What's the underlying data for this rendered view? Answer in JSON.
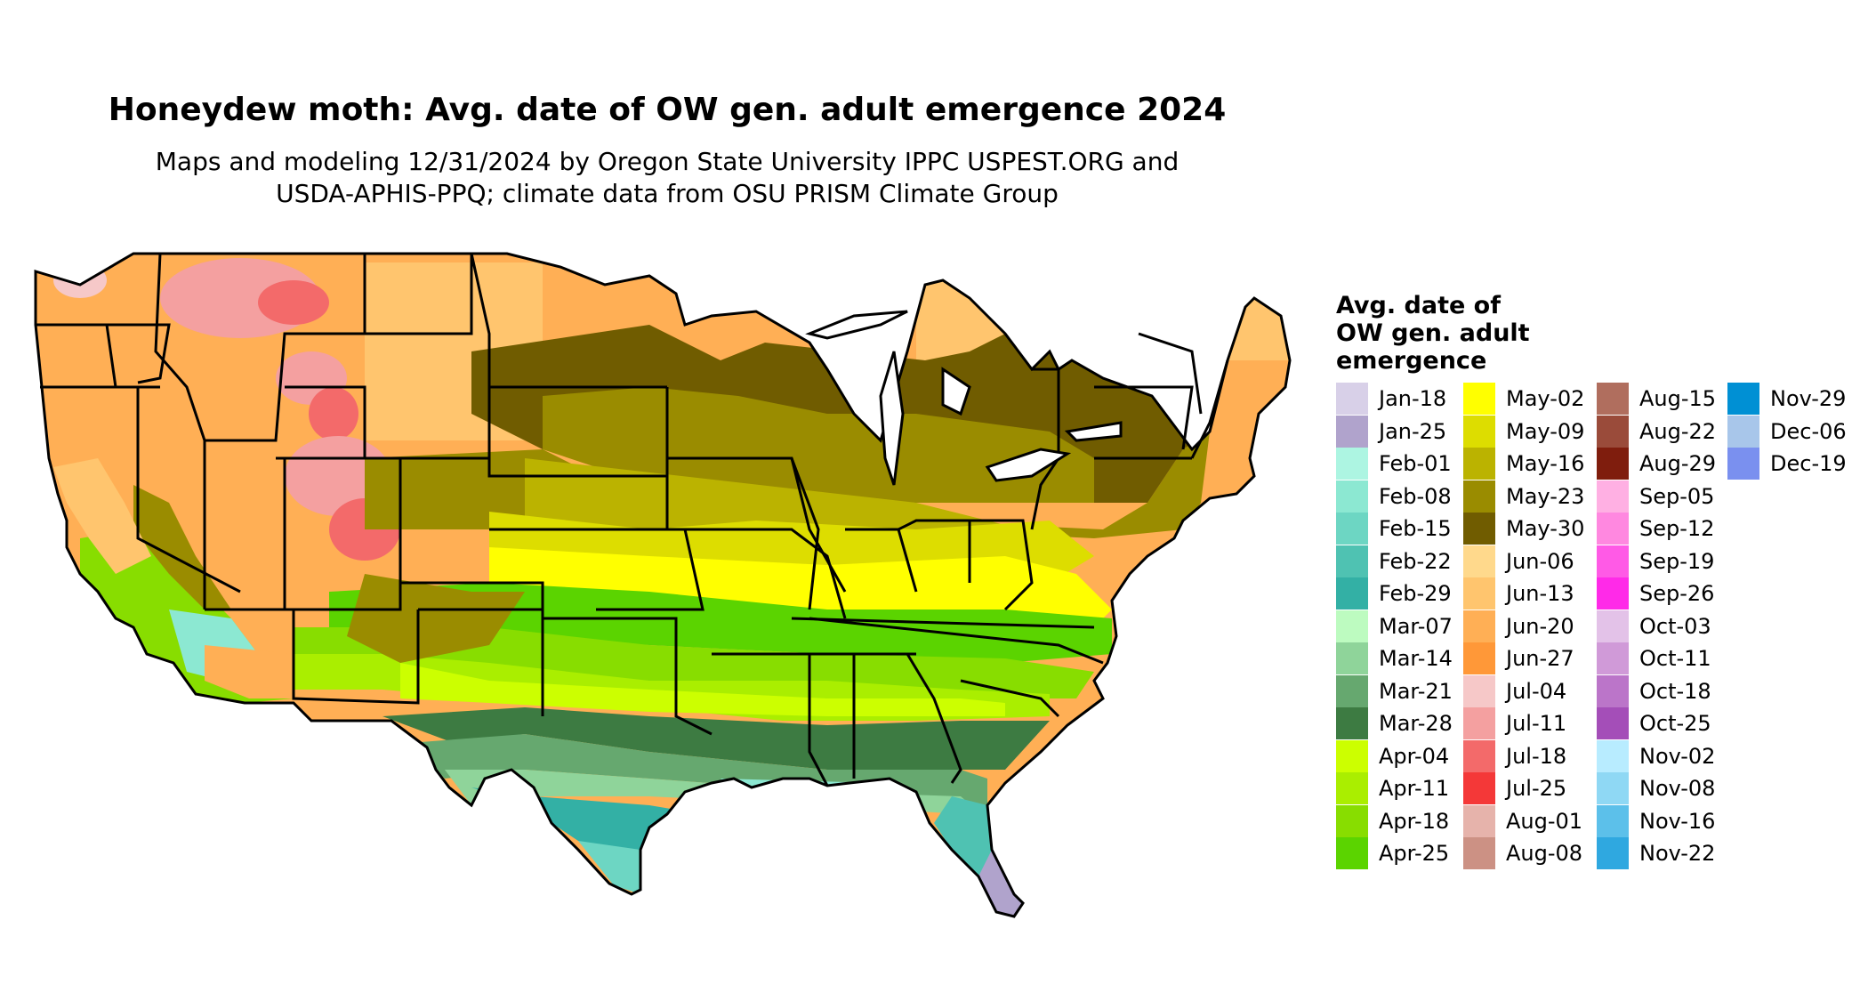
{
  "title": "Honeydew moth: Avg. date of OW gen. adult emergence 2024",
  "subtitle_line1": "Maps and modeling 12/31/2024 by Oregon State University IPPC USPEST.ORG and",
  "subtitle_line2": "USDA-APHIS-PPQ; climate data from OSU PRISM Climate Group",
  "legend": {
    "title_lines": [
      "Avg. date of",
      "OW gen. adult",
      "emergence"
    ],
    "items": [
      {
        "label": "Jan-18",
        "color": "#d8d0e8"
      },
      {
        "label": "Jan-25",
        "color": "#b0a3cc"
      },
      {
        "label": "Feb-01",
        "color": "#adf5e2"
      },
      {
        "label": "Feb-08",
        "color": "#8ce8d2"
      },
      {
        "label": "Feb-15",
        "color": "#6dd6c3"
      },
      {
        "label": "Feb-22",
        "color": "#4fc2b2"
      },
      {
        "label": "Feb-29",
        "color": "#33b0a5"
      },
      {
        "label": "Mar-07",
        "color": "#bdfbc0"
      },
      {
        "label": "Mar-14",
        "color": "#8fd49a"
      },
      {
        "label": "Mar-21",
        "color": "#66a86f"
      },
      {
        "label": "Mar-28",
        "color": "#3d7b42"
      },
      {
        "label": "Apr-04",
        "color": "#ccff00"
      },
      {
        "label": "Apr-11",
        "color": "#aaee00"
      },
      {
        "label": "Apr-18",
        "color": "#88dd00"
      },
      {
        "label": "Apr-25",
        "color": "#5bd400"
      },
      {
        "label": "May-02",
        "color": "#ffff00"
      },
      {
        "label": "May-09",
        "color": "#dddd00"
      },
      {
        "label": "May-16",
        "color": "#bbb300"
      },
      {
        "label": "May-23",
        "color": "#9a8c00"
      },
      {
        "label": "May-30",
        "color": "#705c00"
      },
      {
        "label": "Jun-06",
        "color": "#ffd98c"
      },
      {
        "label": "Jun-13",
        "color": "#ffc56e"
      },
      {
        "label": "Jun-20",
        "color": "#ffaf55"
      },
      {
        "label": "Jun-27",
        "color": "#ff9838"
      },
      {
        "label": "Jul-04",
        "color": "#f6c8c8"
      },
      {
        "label": "Jul-11",
        "color": "#f4a0a0"
      },
      {
        "label": "Jul-18",
        "color": "#f36a6a"
      },
      {
        "label": "Jul-25",
        "color": "#f43838"
      },
      {
        "label": "Aug-01",
        "color": "#e6b3ab"
      },
      {
        "label": "Aug-08",
        "color": "#cc9184"
      },
      {
        "label": "Aug-15",
        "color": "#b06e5e"
      },
      {
        "label": "Aug-22",
        "color": "#9a4b3a"
      },
      {
        "label": "Aug-29",
        "color": "#7f1d0d"
      },
      {
        "label": "Sep-05",
        "color": "#ffb0e3"
      },
      {
        "label": "Sep-12",
        "color": "#ff88e0"
      },
      {
        "label": "Sep-19",
        "color": "#ff5ae6"
      },
      {
        "label": "Sep-26",
        "color": "#ff2ae8"
      },
      {
        "label": "Oct-03",
        "color": "#e3c2e8"
      },
      {
        "label": "Oct-11",
        "color": "#d09ad8"
      },
      {
        "label": "Oct-18",
        "color": "#bb75c9"
      },
      {
        "label": "Oct-25",
        "color": "#a44eb8"
      },
      {
        "label": "Nov-02",
        "color": "#b8ecff"
      },
      {
        "label": "Nov-08",
        "color": "#8fd8f4"
      },
      {
        "label": "Nov-16",
        "color": "#5cc0ea"
      },
      {
        "label": "Nov-22",
        "color": "#2fa8e0"
      },
      {
        "label": "Nov-29",
        "color": "#0090d4"
      },
      {
        "label": "Dec-06",
        "color": "#a8c6ea"
      },
      {
        "label": "Dec-19",
        "color": "#7a90ef"
      }
    ]
  }
}
